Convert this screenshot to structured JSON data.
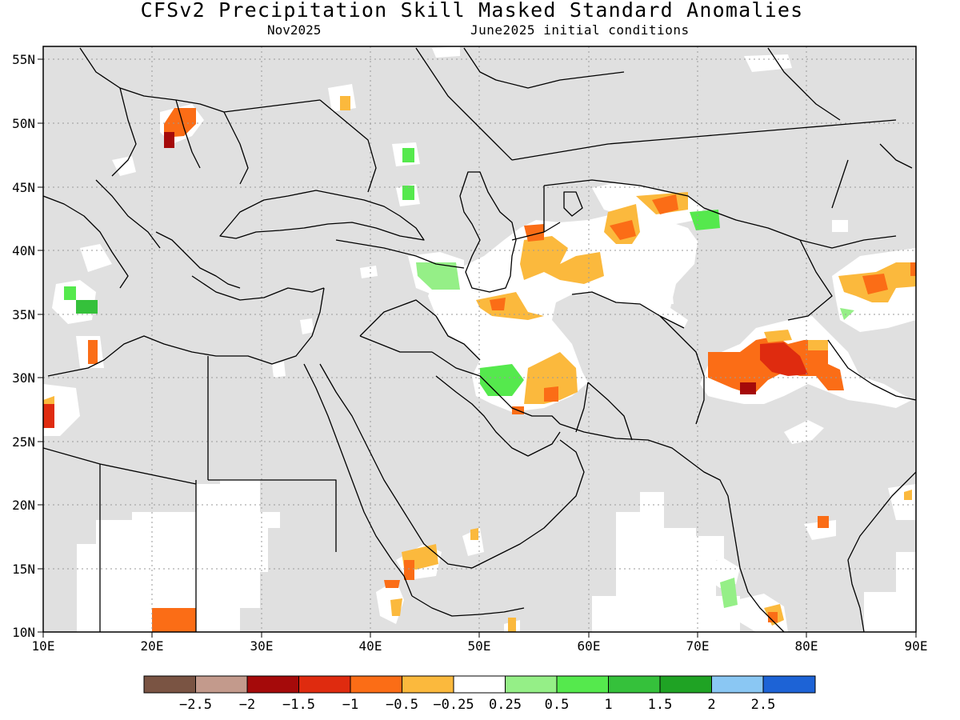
{
  "header": {
    "title": "CFSv2 Precipitation Skill Masked Standard Anomalies",
    "valid_month": "Nov2025",
    "init": "June2025 initial conditions"
  },
  "map": {
    "lon_range": [
      10,
      90
    ],
    "lat_range": [
      10,
      56
    ],
    "lon_ticks": [
      "10E",
      "20E",
      "30E",
      "40E",
      "50E",
      "60E",
      "70E",
      "80E",
      "90E"
    ],
    "lat_ticks": [
      "55N",
      "50N",
      "45N",
      "40N",
      "35N",
      "30N",
      "25N",
      "20N",
      "15N",
      "10N"
    ],
    "grid": true,
    "colors": {
      "masked": "#e0e0e0",
      "neutral": "#ffffff",
      "borders": "#000000"
    }
  },
  "legend": {
    "colors": [
      "#7a5443",
      "#c39a8c",
      "#a50a0a",
      "#df2b0f",
      "#fb6d16",
      "#fbb93d",
      "#ffffff",
      "#95ef87",
      "#55e94d",
      "#35c13b",
      "#1fa324",
      "#8ac7f3",
      "#1d63d6"
    ],
    "labels": [
      "−2.5",
      "−2",
      "−1.5",
      "−1",
      "−0.5",
      "−0.25",
      "0.25",
      "0.5",
      "1",
      "1.5",
      "2",
      "2.5"
    ]
  }
}
